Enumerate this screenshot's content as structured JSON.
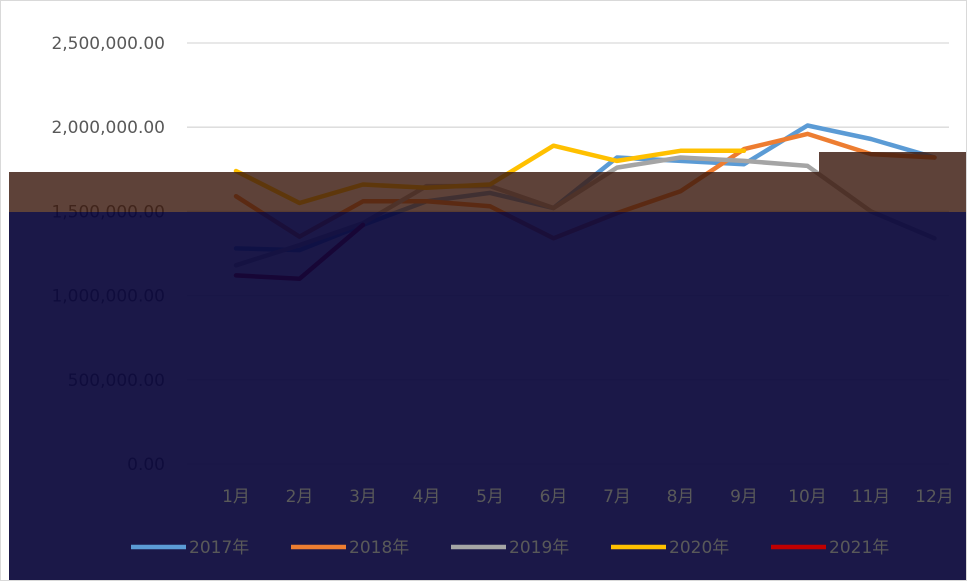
{
  "chart_data": {
    "type": "line",
    "title": "",
    "xlabel": "",
    "ylabel": "",
    "categories": [
      "1月",
      "2月",
      "3月",
      "4月",
      "5月",
      "6月",
      "7月",
      "8月",
      "9月",
      "10月",
      "11月",
      "12月"
    ],
    "ylim": [
      0,
      2500000
    ],
    "yticks": [
      "0.00",
      "500,000.00",
      "1,000,000.00",
      "1,500,000.00",
      "2,000,000.00",
      "2,500,000.00"
    ],
    "ytick_values": [
      0,
      500000,
      1000000,
      1500000,
      2000000,
      2500000
    ],
    "grid": true,
    "legend_position": "bottom",
    "series": [
      {
        "name": "2017年",
        "color": "#5b9bd5",
        "values": [
          1280000,
          1270000,
          1420000,
          1560000,
          1610000,
          1520000,
          1820000,
          1800000,
          1780000,
          2010000,
          1930000,
          1820000
        ]
      },
      {
        "name": "2018年",
        "color": "#ed7d31",
        "values": [
          1590000,
          1350000,
          1560000,
          1560000,
          1530000,
          1340000,
          1490000,
          1620000,
          1870000,
          1960000,
          1840000,
          1820000
        ]
      },
      {
        "name": "2019年",
        "color": "#a5a5a5",
        "values": [
          1180000,
          1300000,
          1430000,
          1650000,
          1650000,
          1520000,
          1760000,
          1820000,
          1800000,
          1770000,
          1500000,
          1340000
        ]
      },
      {
        "name": "2020年",
        "color": "#ffc000",
        "values": [
          1740000,
          1550000,
          1660000,
          1640000,
          1660000,
          1890000,
          1800000,
          1860000,
          1860000,
          null,
          null,
          null
        ]
      },
      {
        "name": "2021年",
        "color": "#c00000",
        "values": [
          1120000,
          1100000,
          1420000,
          null,
          null,
          null,
          null,
          null,
          null,
          null,
          null,
          null
        ]
      }
    ]
  }
}
